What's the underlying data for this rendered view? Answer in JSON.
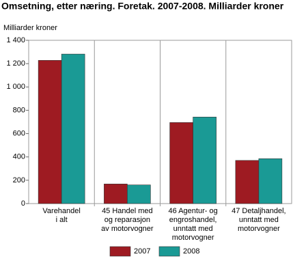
{
  "chart_data": {
    "type": "bar",
    "title": "Omsetning, etter næring. Foretak. 2007-2008. Milliarder kroner",
    "y_label": "Milliarder kroner",
    "categories": [
      [
        "Varehandel",
        "i alt"
      ],
      [
        "45 Handel med",
        "og reparasjon",
        "av motorvogner"
      ],
      [
        "46 Agentur- og",
        "engroshandel,",
        "unntatt med",
        "motorvogner"
      ],
      [
        "47 Detaljhandel,",
        "unntatt med",
        "motorvogner"
      ]
    ],
    "series": [
      {
        "name": "2007",
        "color": "#9e1b22",
        "values": [
          1228,
          168,
          695,
          370
        ]
      },
      {
        "name": "2008",
        "color": "#1a9a95",
        "values": [
          1282,
          160,
          742,
          385
        ]
      }
    ],
    "ylim": [
      0,
      1400
    ],
    "yticks": [
      0,
      200,
      400,
      600,
      800,
      {
        "value": 1000,
        "label": "1 000"
      },
      {
        "value": 1200,
        "label": "1 200"
      },
      {
        "value": 1400,
        "label": "1 400"
      }
    ],
    "legend": "bottom"
  }
}
